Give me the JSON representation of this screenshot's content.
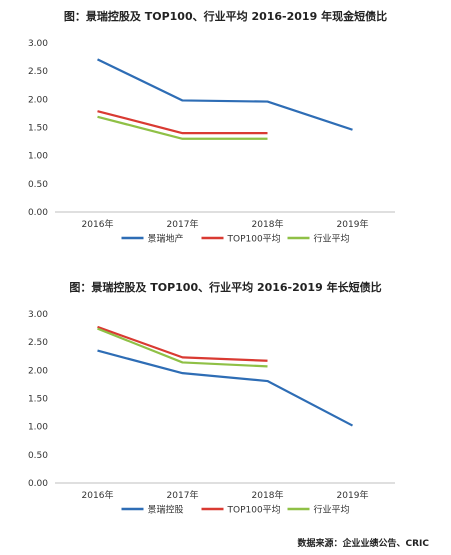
{
  "source": "数据来源：企业业绩公告、CRIC",
  "colors": {
    "company": "#2e6db5",
    "top100": "#d93a32",
    "industry": "#8fc046",
    "axis": "#bfbfbf"
  },
  "chart_data": [
    {
      "type": "line",
      "title": "图：景瑞控股及 TOP100、行业平均 2016-2019 年现金短债比",
      "categories": [
        "2016年",
        "2017年",
        "2018年",
        "2019年"
      ],
      "ylim": [
        0,
        3
      ],
      "yticks": [
        "3.00",
        "2.50",
        "2.00",
        "1.50",
        "1.00",
        "0.50",
        "0.00"
      ],
      "grid": false,
      "legend_position": "bottom",
      "series": [
        {
          "name": "景瑞地产",
          "color": "#2e6db5",
          "values": [
            2.71,
            1.98,
            1.96,
            1.46
          ]
        },
        {
          "name": "TOP100平均",
          "color": "#d93a32",
          "values": [
            1.79,
            1.4,
            1.4,
            null
          ]
        },
        {
          "name": "行业平均",
          "color": "#8fc046",
          "values": [
            1.69,
            1.3,
            1.3,
            null
          ]
        }
      ]
    },
    {
      "type": "line",
      "title": "图：景瑞控股及 TOP100、行业平均 2016-2019 年长短债比",
      "categories": [
        "2016年",
        "2017年",
        "2018年",
        "2019年"
      ],
      "ylim": [
        0,
        3
      ],
      "yticks": [
        "3.00",
        "2.50",
        "2.00",
        "1.50",
        "1.00",
        "0.50",
        "0.00"
      ],
      "grid": false,
      "legend_position": "bottom",
      "series": [
        {
          "name": "景瑞控股",
          "color": "#2e6db5",
          "values": [
            2.35,
            1.95,
            1.81,
            1.02
          ]
        },
        {
          "name": "TOP100平均",
          "color": "#d93a32",
          "values": [
            2.77,
            2.23,
            2.17,
            null
          ]
        },
        {
          "name": "行业平均",
          "color": "#8fc046",
          "values": [
            2.74,
            2.14,
            2.07,
            null
          ]
        }
      ]
    }
  ]
}
